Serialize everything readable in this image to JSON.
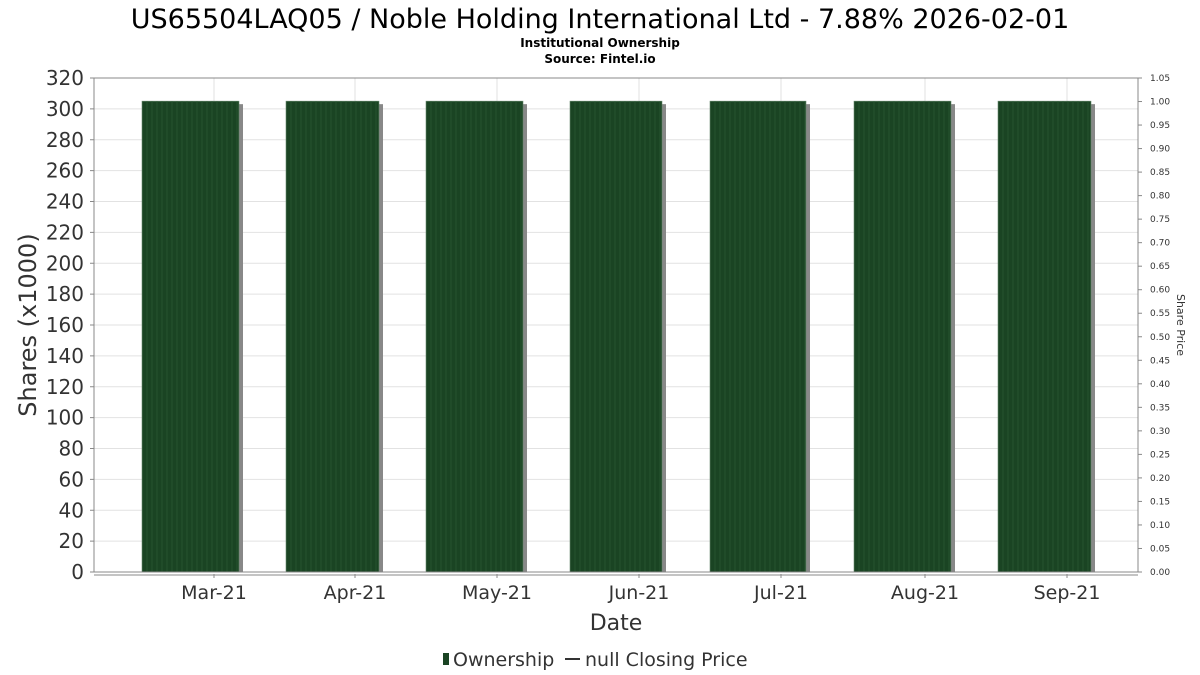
{
  "chart_data": {
    "type": "bar",
    "title": "US65504LAQ05 / Noble Holding International Ltd - 7.88% 2026-02-01",
    "subtitle1": "Institutional Ownership",
    "subtitle2": "Source: Fintel.io",
    "xlabel": "Date",
    "ylabel": "Shares (x1000)",
    "y2label": "Share Price",
    "categories": [
      "Mar-21",
      "Apr-21",
      "May-21",
      "Jun-21",
      "Jul-21",
      "Aug-21",
      "Sep-21"
    ],
    "series": [
      {
        "name": "Ownership",
        "values": [
          305,
          305,
          305,
          305,
          305,
          305,
          305
        ],
        "color": "#1a4423"
      }
    ],
    "ylim": [
      0,
      320
    ],
    "yticks": [
      "0",
      "20",
      "40",
      "60",
      "80",
      "100",
      "120",
      "140",
      "160",
      "180",
      "200",
      "220",
      "240",
      "260",
      "280",
      "300",
      "320"
    ],
    "y2lim": [
      0,
      1.05
    ],
    "y2ticks": [
      "0.00",
      "0.05",
      "0.10",
      "0.15",
      "0.20",
      "0.25",
      "0.30",
      "0.35",
      "0.40",
      "0.45",
      "0.50",
      "0.55",
      "0.60",
      "0.65",
      "0.70",
      "0.75",
      "0.80",
      "0.85",
      "0.90",
      "0.95",
      "1.00",
      "1.05"
    ],
    "legend": {
      "position": "bottom",
      "items": [
        "Ownership",
        "null Closing Price"
      ]
    },
    "grid": true
  }
}
